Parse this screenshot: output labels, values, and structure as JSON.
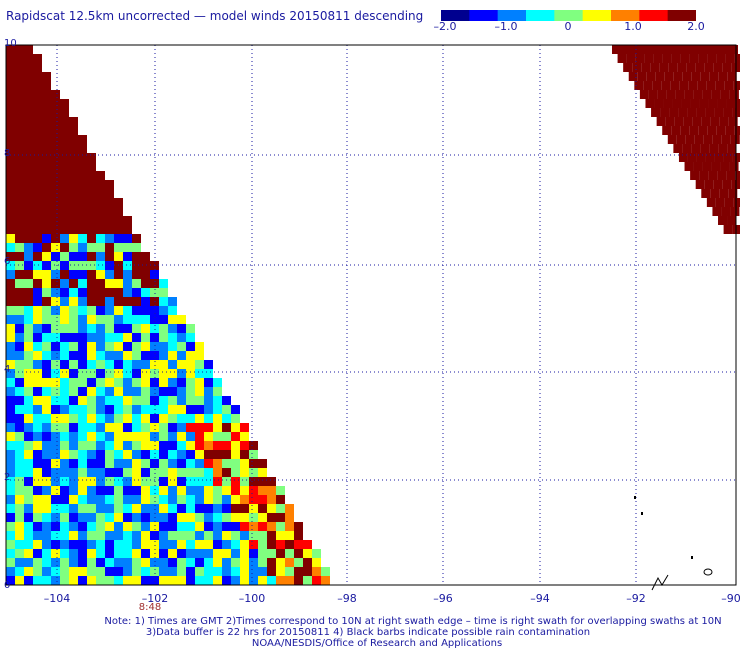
{
  "title": "Rapidscat 12.5km uncorrected — model winds 20150811 descending",
  "colorbar": {
    "min": -2.0,
    "max": 2.0,
    "ticks": [
      "–2.0",
      "–1.0",
      "0",
      "1.0",
      "2.0"
    ],
    "colors": [
      "#00008f",
      "#0000ff",
      "#0080ff",
      "#00ffff",
      "#80ff80",
      "#ffff00",
      "#ff8000",
      "#ff0000",
      "#800000"
    ]
  },
  "axes": {
    "y_labels": [
      "10",
      "8",
      "6",
      "4",
      "2",
      "0"
    ],
    "x_labels": [
      "–104",
      "–102",
      "–100",
      "–98",
      "–96",
      "–94",
      "–92",
      "–90"
    ],
    "x_range": [
      -105,
      -90
    ],
    "y_range": [
      0,
      10
    ],
    "grid": "dotted"
  },
  "swath_time": "8:48",
  "notes": [
    "Note: 1) Times are GMT 2)Times correspond to 10N at right swath edge – time is right swath for overlapping swaths at 10N",
    "3)Data buffer is 22 hrs for 20150811 4) Black barbs indicate possible rain contamination",
    "NOAA/NESDIS/Office of Research and Applications"
  ]
}
